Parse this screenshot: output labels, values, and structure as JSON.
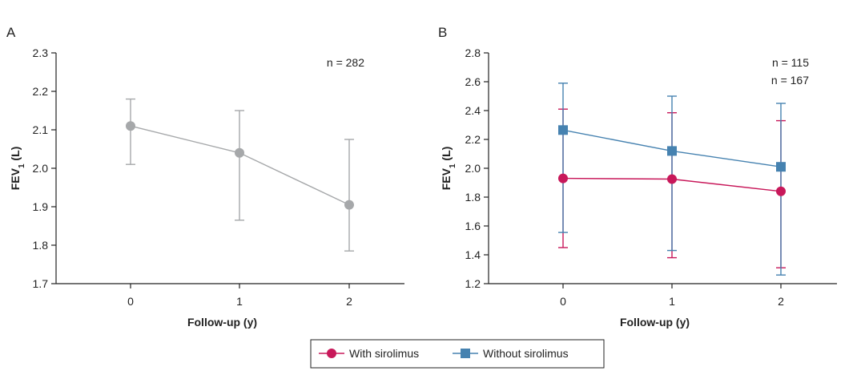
{
  "chart_data": [
    {
      "panel": "A",
      "type": "line",
      "xlabel": "Follow-up (y)",
      "ylabel": "FEV",
      "ylabel_sub": "1",
      "ylabel_tail": " (L)",
      "x": [
        0,
        1,
        2
      ],
      "xticks": [
        "0",
        "1",
        "2"
      ],
      "ylim": [
        1.7,
        2.3
      ],
      "yticks": [
        "1.7",
        "1.8",
        "1.9",
        "2.0",
        "2.1",
        "2.2",
        "2.3"
      ],
      "annotations": [
        "n = 282"
      ],
      "series": [
        {
          "color": "#a6a8aa",
          "marker": "circle",
          "values": [
            2.11,
            2.04,
            1.905
          ],
          "err_low": [
            2.01,
            1.865,
            1.785
          ],
          "err_high": [
            2.18,
            2.15,
            2.075
          ]
        }
      ],
      "grid": false
    },
    {
      "panel": "B",
      "type": "line",
      "xlabel": "Follow-up (y)",
      "ylabel": "FEV",
      "ylabel_sub": "1",
      "ylabel_tail": " (L)",
      "x": [
        0,
        1,
        2
      ],
      "xticks": [
        "0",
        "1",
        "2"
      ],
      "ylim": [
        1.2,
        2.8
      ],
      "yticks": [
        "1.2",
        "1.4",
        "1.6",
        "1.8",
        "2.0",
        "2.2",
        "2.4",
        "2.6",
        "2.8"
      ],
      "annotations": [
        "n = 115",
        "n = 167"
      ],
      "series": [
        {
          "name": "With sirolimus",
          "color": "#c8185a",
          "marker": "circle",
          "values": [
            1.93,
            1.925,
            1.84
          ],
          "err_low": [
            1.45,
            1.38,
            1.31
          ],
          "err_high": [
            2.41,
            2.385,
            2.33
          ]
        },
        {
          "name": "Without sirolimus",
          "color": "#4682b0",
          "marker": "square",
          "values": [
            2.265,
            2.12,
            2.01
          ],
          "err_low": [
            1.555,
            1.43,
            1.26
          ],
          "err_high": [
            2.59,
            2.5,
            2.45
          ]
        }
      ],
      "grid": false,
      "legend": "bottom-center"
    }
  ],
  "legend": [
    "With sirolimus",
    "Without sirolimus"
  ]
}
